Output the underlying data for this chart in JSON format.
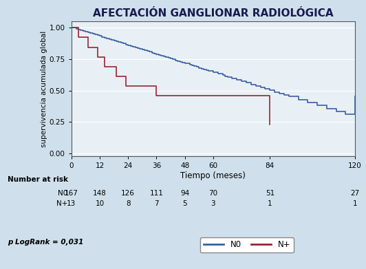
{
  "title": "AFECTACIÓN GANGLIONAR RADIOLÓGICA",
  "xlabel": "Tiempo (meses)",
  "ylabel": "supervivencia acumulada global",
  "background_color": "#cfe0ec",
  "plot_background_color": "#e8f0f5",
  "xlim": [
    0,
    120
  ],
  "ylim": [
    -0.02,
    1.05
  ],
  "xticks": [
    0,
    12,
    24,
    36,
    48,
    60,
    84,
    120
  ],
  "yticks": [
    0.0,
    0.25,
    0.5,
    0.75,
    1.0
  ],
  "n0_color": "#3a5fa0",
  "nplus_color": "#9b2335",
  "plogrank": "p LogRank = 0,031",
  "number_at_risk_label": "Number at risk",
  "risk_times": [
    0,
    12,
    24,
    36,
    48,
    60,
    84,
    120
  ],
  "risk_n0": [
    167,
    148,
    126,
    111,
    94,
    70,
    51,
    27
  ],
  "risk_nplus": [
    13,
    10,
    8,
    7,
    5,
    3,
    1,
    1
  ],
  "n0_times": [
    0,
    2,
    3,
    4,
    5,
    6,
    7,
    8,
    9,
    10,
    11,
    12,
    13,
    14,
    15,
    16,
    17,
    18,
    19,
    20,
    21,
    22,
    23,
    24,
    25,
    26,
    27,
    28,
    29,
    30,
    31,
    32,
    33,
    34,
    35,
    36,
    37,
    38,
    39,
    40,
    41,
    42,
    43,
    44,
    45,
    46,
    47,
    48,
    50,
    51,
    52,
    53,
    54,
    55,
    56,
    57,
    58,
    60,
    62,
    64,
    65,
    66,
    68,
    70,
    72,
    74,
    76,
    78,
    80,
    82,
    84,
    86,
    88,
    90,
    92,
    96,
    100,
    104,
    108,
    112,
    116,
    120
  ],
  "n0_surv": [
    1.0,
    0.994,
    0.988,
    0.982,
    0.976,
    0.97,
    0.964,
    0.958,
    0.952,
    0.946,
    0.94,
    0.934,
    0.928,
    0.922,
    0.916,
    0.91,
    0.904,
    0.898,
    0.892,
    0.886,
    0.88,
    0.874,
    0.868,
    0.862,
    0.856,
    0.85,
    0.844,
    0.838,
    0.832,
    0.826,
    0.82,
    0.814,
    0.808,
    0.802,
    0.796,
    0.79,
    0.784,
    0.778,
    0.772,
    0.766,
    0.76,
    0.754,
    0.748,
    0.742,
    0.736,
    0.73,
    0.724,
    0.718,
    0.706,
    0.7,
    0.694,
    0.688,
    0.682,
    0.676,
    0.67,
    0.664,
    0.658,
    0.646,
    0.634,
    0.622,
    0.616,
    0.61,
    0.598,
    0.586,
    0.574,
    0.562,
    0.55,
    0.538,
    0.526,
    0.514,
    0.502,
    0.49,
    0.478,
    0.466,
    0.454,
    0.43,
    0.406,
    0.382,
    0.358,
    0.334,
    0.31,
    0.455
  ],
  "nplus_times": [
    0,
    3,
    7,
    11,
    14,
    19,
    23,
    30,
    36,
    48,
    84
  ],
  "nplus_surv": [
    1.0,
    0.923,
    0.846,
    0.769,
    0.692,
    0.615,
    0.538,
    0.538,
    0.462,
    0.462,
    0.231
  ]
}
